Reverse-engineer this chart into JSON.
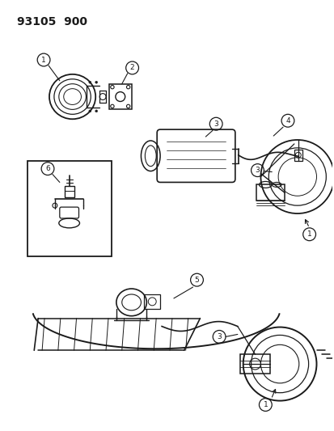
{
  "title": "93105  900",
  "bg_color": "#ffffff",
  "line_color": "#1a1a1a",
  "fig_width": 4.14,
  "fig_height": 5.33,
  "dpi": 100,
  "gray": "#888888",
  "lightgray": "#cccccc"
}
